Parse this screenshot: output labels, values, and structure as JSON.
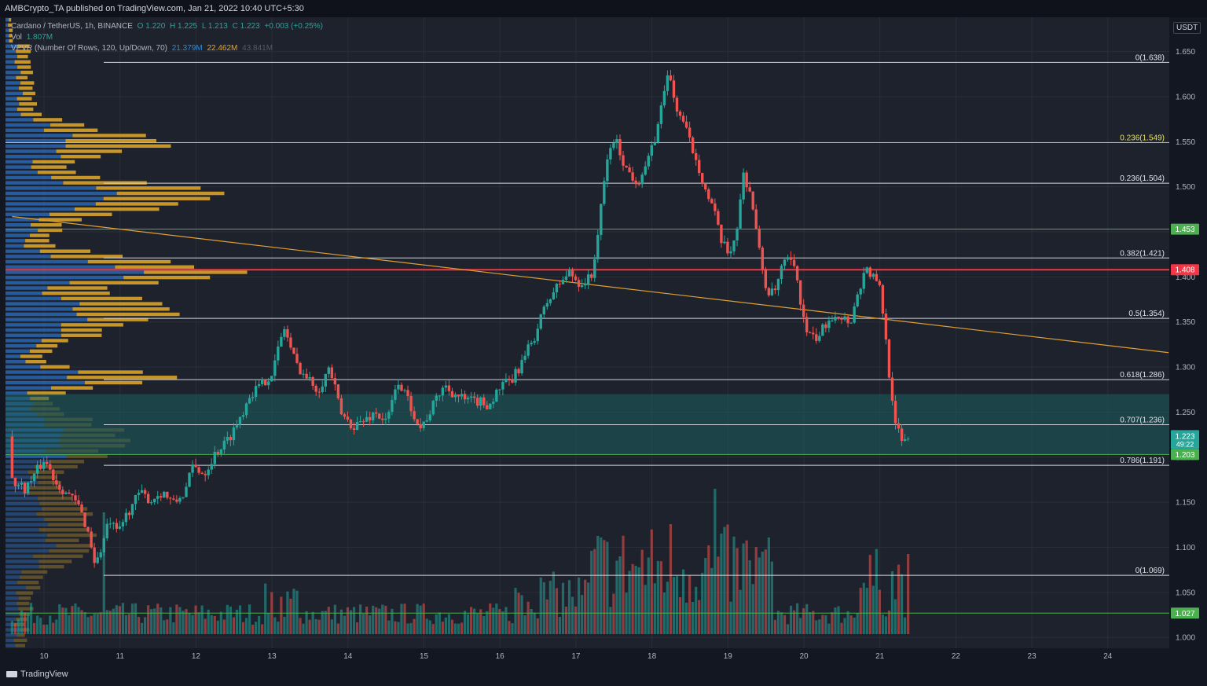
{
  "header": {
    "publisher": "AMBCrypto_TA published on TradingView.com, Jan 21, 2022 10:40 UTC+5:30"
  },
  "legend": {
    "symbol": "Cardano / TetherUS, 1h, BINANCE",
    "open": "O 1.220",
    "high": "H 1.225",
    "low": "L 1.213",
    "close": "C 1.223",
    "change": "+0.003 (+0.25%)",
    "vol_label": "Vol",
    "vol_value": "1.807M",
    "vpvr_label": "VPVR (Number Of Rows, 120, Up/Down, 70)",
    "vpvr_up": "21.379M",
    "vpvr_down": "22.462M",
    "vpvr_total": "43.841M"
  },
  "axis": {
    "currency": "USDT",
    "last_price": "1.223",
    "countdown": "49:22"
  },
  "footer": {
    "logo_text": "TradingView"
  },
  "colors": {
    "background": "#1e222d",
    "up": "#26a69a",
    "down": "#ef5350",
    "fib_white": "#d1d4dc",
    "fib_yellow": "#c8c53a",
    "support_green": "#4caf50",
    "resistance_red": "#f23645",
    "zone_teal": "#1b5e5e",
    "trendline": "#e0a030",
    "vpvr_up": "#2962a8",
    "vpvr_down": "#d8a32a"
  },
  "chart_data": {
    "type": "candlestick",
    "timeframe": "1h",
    "ylim": [
      0.988,
      1.688
    ],
    "x_ticks": [
      "10",
      "11",
      "12",
      "13",
      "14",
      "15",
      "16",
      "17",
      "18",
      "19",
      "20",
      "21",
      "22",
      "23",
      "24"
    ],
    "y_ticks": [
      "1.650",
      "1.600",
      "1.550",
      "1.500",
      "1.450",
      "1.400",
      "1.350",
      "1.300",
      "1.250",
      "1.200",
      "1.150",
      "1.100",
      "1.050",
      "1.000"
    ],
    "fib_levels": [
      {
        "label": "0(1.638)",
        "value": 1.638,
        "color": "white"
      },
      {
        "label": "0.236(1.549)",
        "value": 1.549,
        "color": "yellow"
      },
      {
        "label": "0.236(1.504)",
        "value": 1.504,
        "color": "white"
      },
      {
        "label": "0.382(1.421)",
        "value": 1.421,
        "color": "white"
      },
      {
        "label": "0.5(1.354)",
        "value": 1.354,
        "color": "white"
      },
      {
        "label": "0.618(1.286)",
        "value": 1.286,
        "color": "white"
      },
      {
        "label": "0.707(1.236)",
        "value": 1.236,
        "color": "white"
      },
      {
        "label": "0.786(1.191)",
        "value": 1.191,
        "color": "white"
      },
      {
        "label": "0(1.069)",
        "value": 1.069,
        "color": "white"
      }
    ],
    "price_levels": [
      {
        "label": "1.453",
        "value": 1.453,
        "kind": "support"
      },
      {
        "label": "1.408",
        "value": 1.408,
        "kind": "resistance"
      },
      {
        "label": "1.203",
        "value": 1.203,
        "kind": "support"
      },
      {
        "label": "1.027",
        "value": 1.027,
        "kind": "support"
      }
    ],
    "demand_zone": [
      1.203,
      1.27
    ],
    "trendline": {
      "start": {
        "day": 9.58,
        "price": 1.467
      },
      "end": {
        "day": 24.8,
        "price": 1.316
      }
    },
    "path_points": [
      [
        9.6,
        1.175
      ],
      [
        9.8,
        1.165
      ],
      [
        9.95,
        1.185
      ],
      [
        10.05,
        1.198
      ],
      [
        10.2,
        1.172
      ],
      [
        10.35,
        1.16
      ],
      [
        10.5,
        1.145
      ],
      [
        10.62,
        1.118
      ],
      [
        10.72,
        1.08
      ],
      [
        10.8,
        1.1
      ],
      [
        10.9,
        1.13
      ],
      [
        11.0,
        1.115
      ],
      [
        11.15,
        1.14
      ],
      [
        11.3,
        1.16
      ],
      [
        11.45,
        1.152
      ],
      [
        11.6,
        1.162
      ],
      [
        11.75,
        1.148
      ],
      [
        11.9,
        1.162
      ],
      [
        12.0,
        1.19
      ],
      [
        12.15,
        1.182
      ],
      [
        12.3,
        1.205
      ],
      [
        12.45,
        1.218
      ],
      [
        12.6,
        1.24
      ],
      [
        12.75,
        1.27
      ],
      [
        12.9,
        1.28
      ],
      [
        13.05,
        1.295
      ],
      [
        13.2,
        1.345
      ],
      [
        13.35,
        1.305
      ],
      [
        13.5,
        1.288
      ],
      [
        13.65,
        1.275
      ],
      [
        13.8,
        1.3
      ],
      [
        13.95,
        1.248
      ],
      [
        14.1,
        1.235
      ],
      [
        14.25,
        1.24
      ],
      [
        14.4,
        1.25
      ],
      [
        14.55,
        1.238
      ],
      [
        14.7,
        1.285
      ],
      [
        14.85,
        1.26
      ],
      [
        15.0,
        1.232
      ],
      [
        15.15,
        1.255
      ],
      [
        15.3,
        1.28
      ],
      [
        15.45,
        1.27
      ],
      [
        15.6,
        1.262
      ],
      [
        15.75,
        1.262
      ],
      [
        15.9,
        1.258
      ],
      [
        16.05,
        1.278
      ],
      [
        16.2,
        1.285
      ],
      [
        16.35,
        1.308
      ],
      [
        16.5,
        1.335
      ],
      [
        16.65,
        1.37
      ],
      [
        16.8,
        1.39
      ],
      [
        16.95,
        1.405
      ],
      [
        17.1,
        1.392
      ],
      [
        17.25,
        1.4
      ],
      [
        17.35,
        1.46
      ],
      [
        17.45,
        1.53
      ],
      [
        17.55,
        1.555
      ],
      [
        17.7,
        1.52
      ],
      [
        17.85,
        1.505
      ],
      [
        18.0,
        1.53
      ],
      [
        18.12,
        1.565
      ],
      [
        18.2,
        1.61
      ],
      [
        18.27,
        1.625
      ],
      [
        18.35,
        1.59
      ],
      [
        18.45,
        1.572
      ],
      [
        18.55,
        1.548
      ],
      [
        18.65,
        1.525
      ],
      [
        18.75,
        1.495
      ],
      [
        18.85,
        1.475
      ],
      [
        18.95,
        1.44
      ],
      [
        19.05,
        1.425
      ],
      [
        19.15,
        1.448
      ],
      [
        19.25,
        1.515
      ],
      [
        19.35,
        1.49
      ],
      [
        19.45,
        1.43
      ],
      [
        19.55,
        1.385
      ],
      [
        19.65,
        1.38
      ],
      [
        19.75,
        1.41
      ],
      [
        19.85,
        1.42
      ],
      [
        19.95,
        1.4
      ],
      [
        20.05,
        1.345
      ],
      [
        20.15,
        1.33
      ],
      [
        20.25,
        1.335
      ],
      [
        20.35,
        1.352
      ],
      [
        20.45,
        1.36
      ],
      [
        20.55,
        1.355
      ],
      [
        20.65,
        1.35
      ],
      [
        20.75,
        1.38
      ],
      [
        20.85,
        1.41
      ],
      [
        20.95,
        1.4
      ],
      [
        21.05,
        1.385
      ],
      [
        21.12,
        1.33
      ],
      [
        21.18,
        1.28
      ],
      [
        21.25,
        1.24
      ],
      [
        21.32,
        1.215
      ],
      [
        21.4,
        1.223
      ]
    ],
    "volume_spikes": [
      {
        "day": 10.8,
        "value": 155
      },
      {
        "day": 18.82,
        "value": 185
      },
      {
        "day": 18.25,
        "value": 140
      }
    ]
  }
}
